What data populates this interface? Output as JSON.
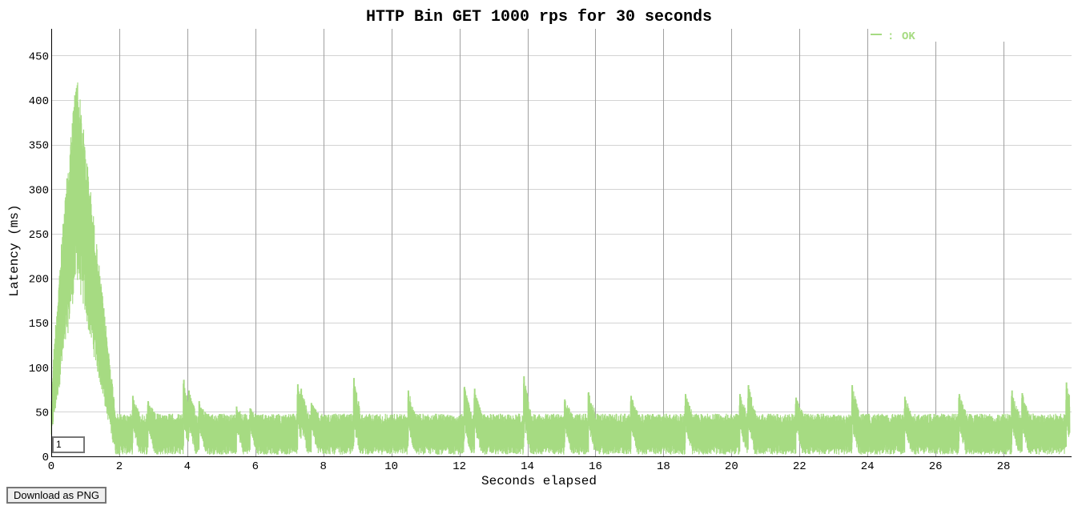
{
  "chart_data": {
    "type": "line",
    "title": "HTTP Bin GET 1000 rps for 30 seconds",
    "xlabel": "Seconds elapsed",
    "ylabel": "Latency (ms)",
    "xlim": [
      0,
      30
    ],
    "ylim": [
      0,
      480
    ],
    "x_ticks": [
      0,
      2,
      4,
      6,
      8,
      10,
      12,
      14,
      16,
      18,
      20,
      22,
      24,
      26,
      28
    ],
    "y_ticks": [
      0,
      50,
      100,
      150,
      200,
      250,
      300,
      350,
      400,
      450
    ],
    "grid": true,
    "legend_position": "top-right",
    "series": [
      {
        "name": "OK",
        "color": "#a6db82",
        "baseline_range": [
          2,
          48
        ],
        "warmup": {
          "start": 0,
          "peak_time": 0.75,
          "peak_value": 436,
          "end": 1.9
        },
        "spikes": [
          {
            "x": 2.4,
            "y": 68
          },
          {
            "x": 2.85,
            "y": 62
          },
          {
            "x": 3.9,
            "y": 86
          },
          {
            "x": 4.05,
            "y": 74
          },
          {
            "x": 4.35,
            "y": 62
          },
          {
            "x": 5.45,
            "y": 56
          },
          {
            "x": 5.85,
            "y": 54
          },
          {
            "x": 7.25,
            "y": 81
          },
          {
            "x": 7.35,
            "y": 76
          },
          {
            "x": 7.65,
            "y": 60
          },
          {
            "x": 8.9,
            "y": 88
          },
          {
            "x": 10.5,
            "y": 74
          },
          {
            "x": 12.15,
            "y": 78
          },
          {
            "x": 12.45,
            "y": 76
          },
          {
            "x": 13.9,
            "y": 90
          },
          {
            "x": 15.1,
            "y": 64
          },
          {
            "x": 15.8,
            "y": 72
          },
          {
            "x": 17.05,
            "y": 68
          },
          {
            "x": 18.65,
            "y": 70
          },
          {
            "x": 20.25,
            "y": 70
          },
          {
            "x": 20.5,
            "y": 80
          },
          {
            "x": 21.9,
            "y": 66
          },
          {
            "x": 23.55,
            "y": 80
          },
          {
            "x": 25.1,
            "y": 67
          },
          {
            "x": 26.7,
            "y": 70
          },
          {
            "x": 28.25,
            "y": 74
          },
          {
            "x": 28.55,
            "y": 71
          },
          {
            "x": 29.85,
            "y": 83
          }
        ]
      }
    ]
  },
  "controls": {
    "download_label": "Download as PNG",
    "zoom_value": "1"
  }
}
